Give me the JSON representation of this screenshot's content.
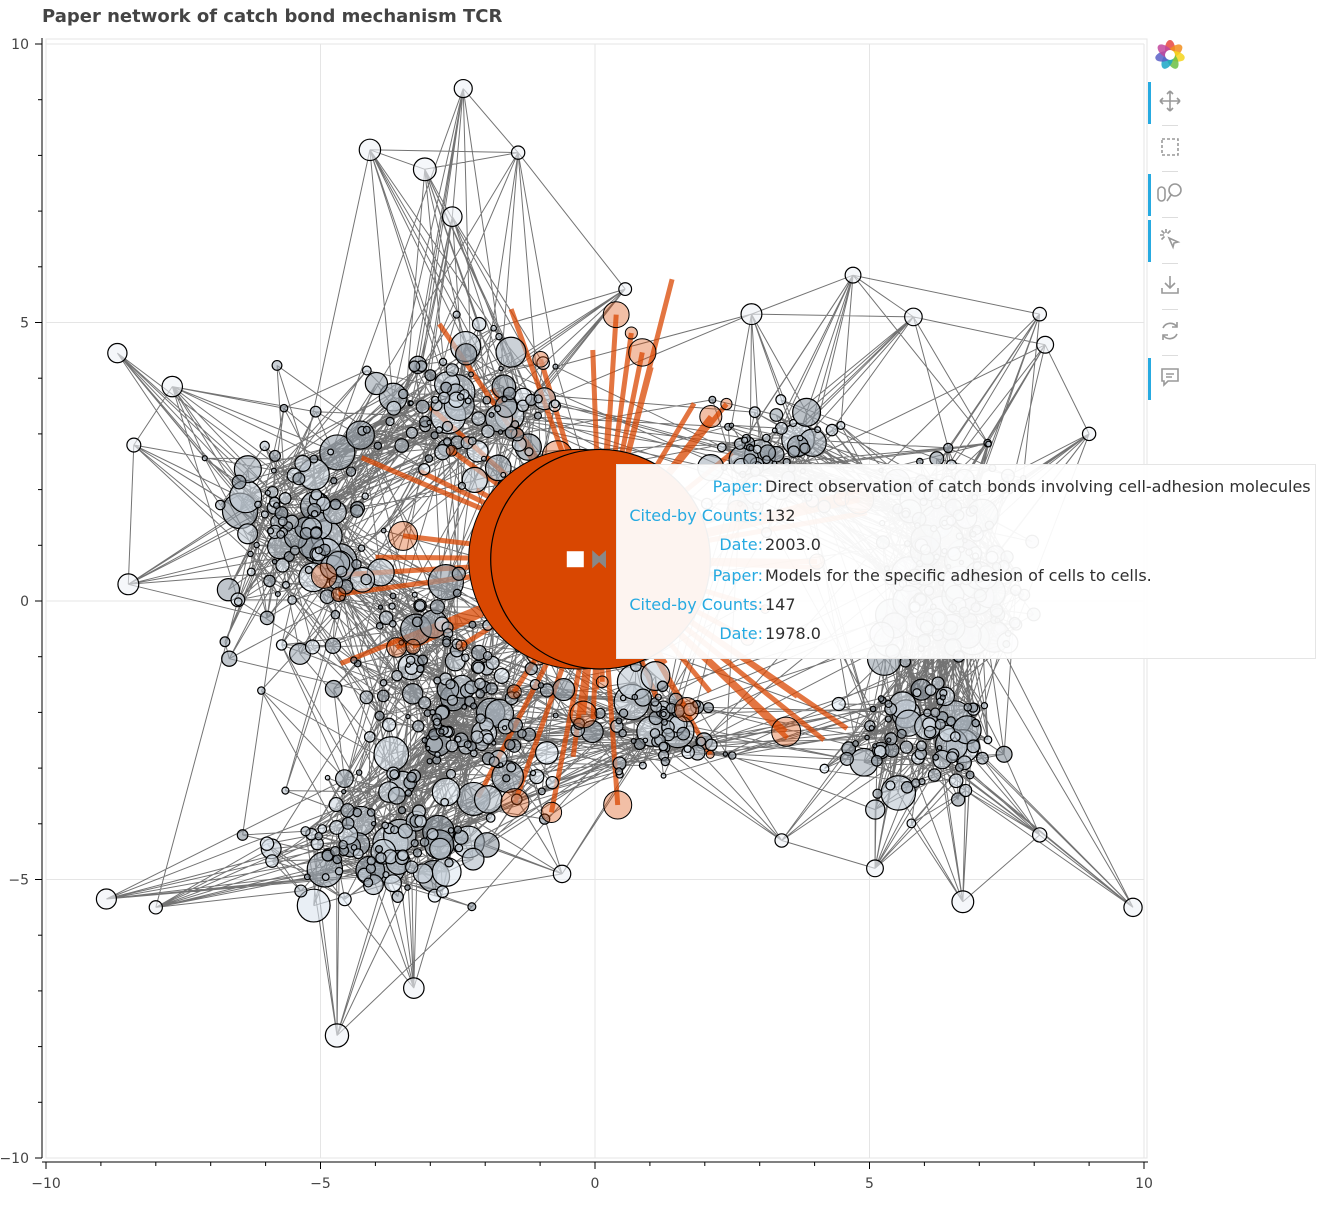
{
  "title": "Paper network of catch bond mechanism TCR",
  "colors": {
    "highlight": "#d94701",
    "node_fill": "#d0dbe6",
    "edge": "#000000",
    "tooltip_key": "#26aae1",
    "toolbar_active": "#26aae1",
    "grid": "#e5e5e5"
  },
  "toolbar": {
    "tools": [
      {
        "name": "bokeh-logo-icon",
        "active": false
      },
      {
        "name": "pan-tool-icon",
        "active": true
      },
      {
        "name": "box-select-tool-icon",
        "active": false
      },
      {
        "name": "wheel-zoom-tool-icon",
        "active": true
      },
      {
        "name": "tap-tool-icon",
        "active": true
      },
      {
        "name": "save-tool-icon",
        "active": false
      },
      {
        "name": "reset-tool-icon",
        "active": false
      },
      {
        "name": "hover-tool-icon",
        "active": true
      }
    ]
  },
  "tooltip": {
    "rows": [
      {
        "key": "Paper:",
        "value": "Direct observation of catch bonds involving cell-adhesion molecules"
      },
      {
        "key": "Cited-by Counts:",
        "value": "132"
      },
      {
        "key": "Date:",
        "value": "2003.0"
      },
      {
        "key": "Paper:",
        "value": "Models for the specific adhesion of cells to cells."
      },
      {
        "key": "Cited-by Counts:",
        "value": "147"
      },
      {
        "key": "Date:",
        "value": "1978.0"
      }
    ]
  },
  "chart_data": {
    "type": "scatter",
    "subtype": "network graph",
    "title": "Paper network of catch bond mechanism TCR",
    "xlabel": "",
    "ylabel": "",
    "xlim": [
      -10,
      10
    ],
    "ylim": [
      -10,
      10
    ],
    "grid": true,
    "x_ticks": [
      "−10",
      "−5",
      "0",
      "5",
      "10"
    ],
    "y_ticks": [
      "10",
      "5",
      "0",
      "−5",
      "−10"
    ],
    "highlighted_node": {
      "x": 0.1,
      "y": 0.75,
      "radius": 2.0
    },
    "outer_nodes": [
      {
        "x": -8.7,
        "y": 4.45
      },
      {
        "x": -8.4,
        "y": 2.8
      },
      {
        "x": -8.5,
        "y": 0.3
      },
      {
        "x": -8.9,
        "y": -5.35
      },
      {
        "x": -8.0,
        "y": -5.5
      },
      {
        "x": -7.7,
        "y": 3.85
      },
      {
        "x": -4.1,
        "y": 8.1
      },
      {
        "x": -2.4,
        "y": 9.2
      },
      {
        "x": -1.4,
        "y": 8.05
      },
      {
        "x": -3.1,
        "y": 7.75
      },
      {
        "x": -2.6,
        "y": 6.9
      },
      {
        "x": 0.55,
        "y": 5.6
      },
      {
        "x": 4.7,
        "y": 5.85
      },
      {
        "x": 2.85,
        "y": 5.15
      },
      {
        "x": 5.8,
        "y": 5.1
      },
      {
        "x": 8.1,
        "y": 5.15
      },
      {
        "x": 8.2,
        "y": 4.6
      },
      {
        "x": 9.0,
        "y": 3.0
      },
      {
        "x": 9.8,
        "y": -5.5
      },
      {
        "x": 6.7,
        "y": -5.4
      },
      {
        "x": 5.1,
        "y": -4.8
      },
      {
        "x": -4.7,
        "y": -7.8
      },
      {
        "x": -3.3,
        "y": -6.95
      },
      {
        "x": -0.6,
        "y": -4.9
      },
      {
        "x": 3.4,
        "y": -4.3
      },
      {
        "x": 8.1,
        "y": -4.2
      }
    ]
  }
}
